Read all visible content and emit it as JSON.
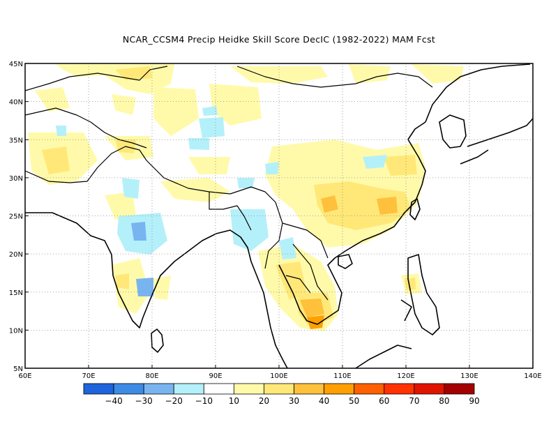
{
  "title": "NCAR_CCSM4 Precip Heidke Skill Score DecIC (1982-2022) MAM Fcst",
  "map": {
    "lon_range": [
      60,
      140
    ],
    "lat_range": [
      5,
      45
    ],
    "x_tick_labels": [
      "60E",
      "70E",
      "80E",
      "90E",
      "100E",
      "110E",
      "120E",
      "130E",
      "140E"
    ],
    "y_tick_labels": [
      "5N",
      "10N",
      "15N",
      "20N",
      "25N",
      "30N",
      "35N",
      "40N",
      "45N"
    ],
    "grid": "dotted"
  },
  "colorbar": {
    "labels": [
      "-40",
      "-30",
      "-20",
      "-10",
      "10",
      "20",
      "30",
      "40",
      "50",
      "60",
      "70",
      "80",
      "90"
    ],
    "colors": [
      "#1e64dc",
      "#3c8ce6",
      "#78b4f0",
      "#b4f0fa",
      "#ffffff",
      "#fffaaa",
      "#ffe878",
      "#ffc03c",
      "#ffa000",
      "#ff6000",
      "#ff3200",
      "#e11400",
      "#a50000"
    ]
  }
}
